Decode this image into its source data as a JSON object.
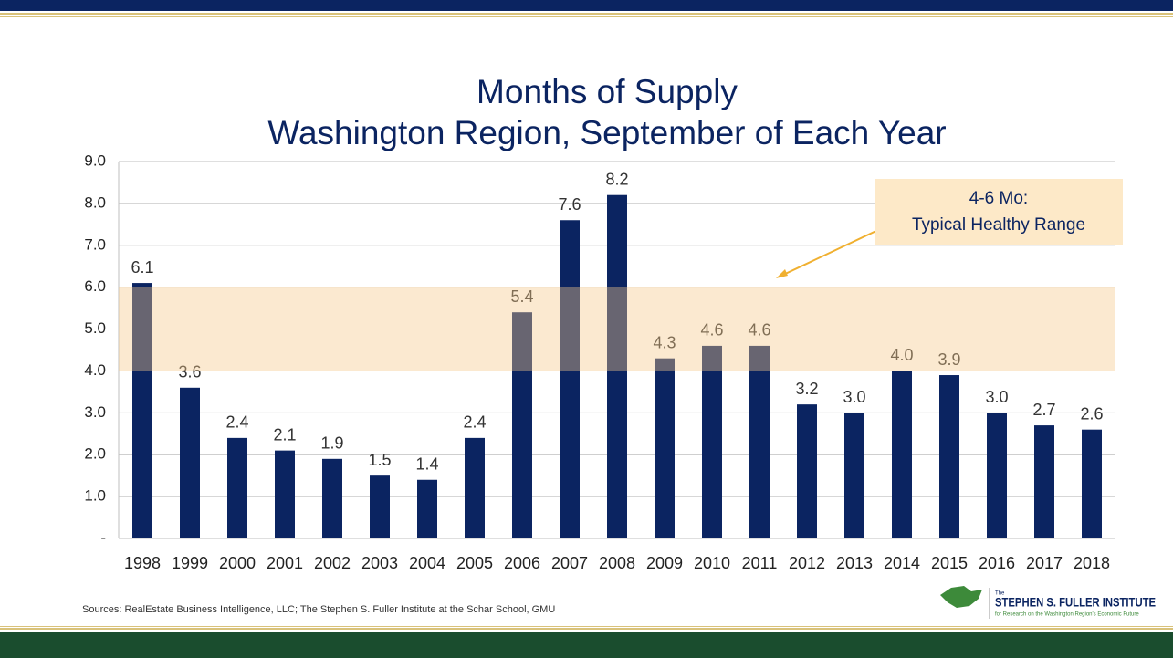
{
  "chart_data": {
    "type": "bar",
    "title": "Months of Supply",
    "subtitle": "Washington Region, September of Each Year",
    "categories": [
      "1998",
      "1999",
      "2000",
      "2001",
      "2002",
      "2003",
      "2004",
      "2005",
      "2006",
      "2007",
      "2008",
      "2009",
      "2010",
      "2011",
      "2012",
      "2013",
      "2014",
      "2015",
      "2016",
      "2017",
      "2018"
    ],
    "values": [
      6.1,
      3.6,
      2.4,
      2.1,
      1.9,
      1.5,
      1.4,
      2.4,
      5.4,
      7.6,
      8.2,
      4.3,
      4.6,
      4.6,
      3.2,
      3.0,
      4.0,
      3.9,
      3.0,
      2.7,
      2.6
    ],
    "value_labels": [
      "6.1",
      "3.6",
      "2.4",
      "2.1",
      "1.9",
      "1.5",
      "1.4",
      "2.4",
      "5.4",
      "7.6",
      "8.2",
      "4.3",
      "4.6",
      "4.6",
      "3.2",
      "3.0",
      "4.0",
      "3.9",
      "3.0",
      "2.7",
      "2.6"
    ],
    "color": "#0b2461",
    "ylim": [
      0,
      9
    ],
    "yticks": [
      {
        "value": 0,
        "label": "-"
      },
      {
        "value": 1,
        "label": "1.0"
      },
      {
        "value": 2,
        "label": "2.0"
      },
      {
        "value": 3,
        "label": "3.0"
      },
      {
        "value": 4,
        "label": "4.0"
      },
      {
        "value": 5,
        "label": "5.0"
      },
      {
        "value": 6,
        "label": "6.0"
      },
      {
        "value": 7,
        "label": "7.0"
      },
      {
        "value": 8,
        "label": "8.0"
      },
      {
        "value": 9,
        "label": "9.0"
      }
    ],
    "grid": true,
    "highlight_range": [
      4,
      6
    ],
    "annotation": [
      "4-6 Mo:",
      "Typical Healthy Range"
    ],
    "source": "Sources: RealEstate Business Intelligence, LLC; The Stephen S. Fuller Institute at the Schar School, GMU"
  },
  "logo": {
    "prefix": "The",
    "name": "STEPHEN S. FULLER INSTITUTE",
    "tagline": "for Research on the Washington Region's Economic Future"
  }
}
